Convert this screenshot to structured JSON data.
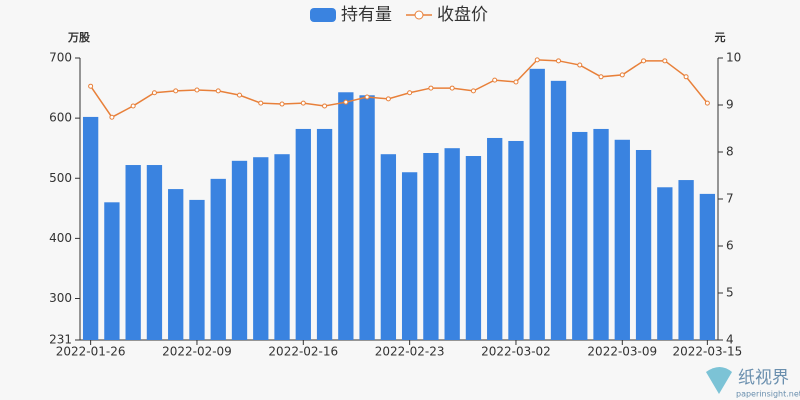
{
  "chart_data": {
    "type": "bar",
    "legend": "top",
    "y_label": "万股",
    "y2_label": "元",
    "categories": [
      "2022-01-26",
      null,
      null,
      null,
      null,
      "2022-02-09",
      null,
      null,
      null,
      null,
      "2022-02-16",
      null,
      null,
      null,
      null,
      "2022-02-23",
      null,
      null,
      null,
      null,
      "2022-03-02",
      null,
      null,
      null,
      null,
      "2022-03-09",
      null,
      null,
      null,
      "2022-03-15"
    ],
    "series": [
      {
        "name": "持有量",
        "type": "bar",
        "color": "#3a83e0",
        "values": [
          602,
          460,
          522,
          522,
          482,
          464,
          499,
          529,
          535,
          540,
          582,
          582,
          643,
          638,
          540,
          510,
          542,
          550,
          537,
          567,
          562,
          682,
          662,
          577,
          582,
          564,
          547,
          485,
          497,
          474
        ]
      },
      {
        "name": "收盘价",
        "type": "line",
        "axis": "y2",
        "color": "#e8803a",
        "values": [
          9.4,
          8.74,
          8.98,
          9.26,
          9.3,
          9.32,
          9.3,
          9.21,
          9.04,
          9.02,
          9.04,
          8.98,
          9.06,
          9.17,
          9.13,
          9.26,
          9.36,
          9.36,
          9.3,
          9.53,
          9.49,
          9.96,
          9.94,
          9.85,
          9.6,
          9.64,
          9.94,
          9.94,
          9.6,
          9.04
        ]
      }
    ],
    "ylim": [
      231,
      700
    ],
    "yticks": [
      231,
      300,
      400,
      500,
      600,
      700
    ],
    "y2lim": [
      4,
      10
    ],
    "y2ticks": [
      4,
      5,
      6,
      7,
      8,
      9,
      10
    ],
    "grid": false
  },
  "watermark": {
    "name": "纸视界",
    "site": "paperinsight.net"
  }
}
